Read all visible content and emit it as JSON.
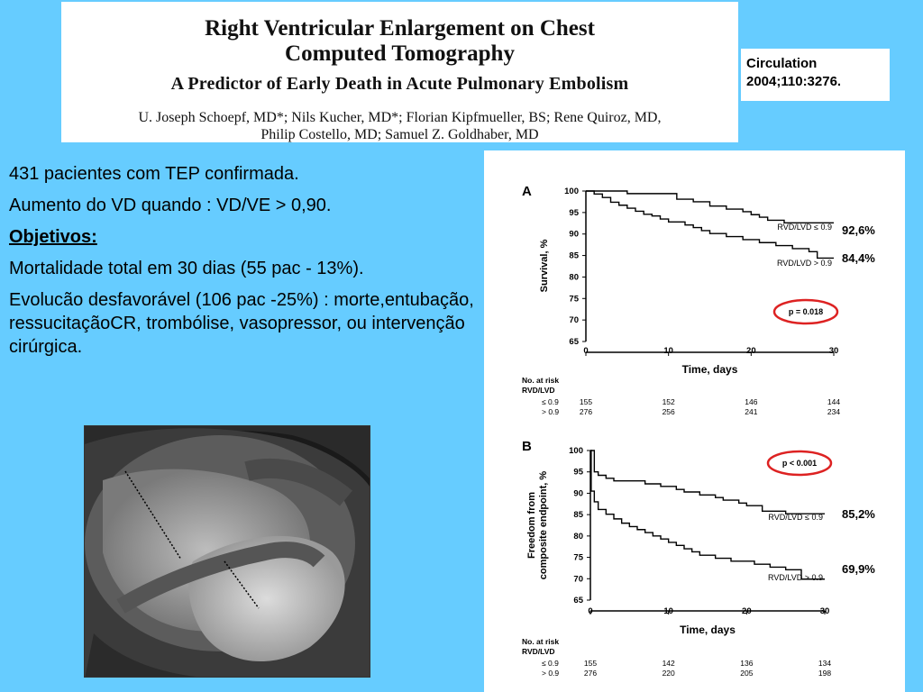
{
  "header": {
    "title_line1": "Right Ventricular Enlargement on Chest",
    "title_line2": "Computed Tomography",
    "subtitle": "A Predictor of Early Death in Acute Pulmonary Embolism",
    "authors_line1": "U. Joseph Schoepf, MD*; Nils Kucher, MD*; Florian Kipfmueller, BS; Rene Quiroz, MD,",
    "authors_line2": "Philip Costello, MD; Samuel Z. Goldhaber, MD"
  },
  "citation": {
    "line1": "Circulation",
    "line2": "2004;110:3276."
  },
  "body_text": {
    "p1": "431 pacientes com TEP confirmada.",
    "p2": "Aumento do VD quando : VD/VE > 0,90.",
    "p3": "Objetivos:",
    "p4": "Mortalidade total em 30 dias (55 pac - 13%).",
    "p5": "Evolucão desfavorável (106 pac -25%) : morte,entubação, ressucitaçãoCR, trombólise, vasopressor, ou intervenção cirúrgica."
  },
  "annotations": {
    "a_upper": "92,6%",
    "a_lower": "84,4%",
    "b_upper": "85,2%",
    "b_lower": "69,9%"
  },
  "chart_data": [
    {
      "type": "line",
      "panel_label": "A",
      "xlabel": "Time, days",
      "ylabel": "Survival, %",
      "xlim": [
        0,
        30
      ],
      "ylim": [
        65,
        100
      ],
      "x_ticks": [
        "0",
        "10",
        "20",
        "30"
      ],
      "y_ticks": [
        "65",
        "70",
        "75",
        "80",
        "85",
        "90",
        "95",
        "100"
      ],
      "series": [
        {
          "name": "RVD/LVD ≤ 0.9",
          "x": [
            0,
            3,
            5,
            8,
            11,
            13,
            15,
            17,
            19,
            20,
            21,
            22,
            24,
            30
          ],
          "y": [
            100,
            100,
            99.4,
            99.4,
            98.1,
            97.5,
            96.5,
            95.8,
            95.2,
            94.5,
            93.9,
            93.2,
            92.6,
            92.6
          ]
        },
        {
          "name": "RVD/LVD > 0.9",
          "x": [
            0,
            1,
            2,
            3,
            4,
            5,
            6,
            7,
            8,
            9,
            10,
            12,
            13,
            14,
            15,
            17,
            19,
            21,
            23,
            25,
            27,
            28,
            30
          ],
          "y": [
            100,
            99.3,
            98.5,
            97.4,
            96.7,
            96,
            95.3,
            94.6,
            94.2,
            93.5,
            92.8,
            92.1,
            91.5,
            90.8,
            90.1,
            89.4,
            88.7,
            88,
            87.3,
            86.6,
            85.9,
            84.4,
            84.4
          ]
        }
      ],
      "p_value": "p = 0.018",
      "risk_table": {
        "title": "No. at risk",
        "subtitle": "RVD/LVD",
        "rows": [
          {
            "label": "≤ 0.9",
            "values": [
              "155",
              "152",
              "146",
              "144"
            ]
          },
          {
            "label": "> 0.9",
            "values": [
              "276",
              "256",
              "241",
              "234"
            ]
          }
        ]
      }
    },
    {
      "type": "line",
      "panel_label": "B",
      "xlabel": "Time, days",
      "ylabel": "Freedom from composite endpoint, %",
      "xlim": [
        0,
        30
      ],
      "ylim": [
        65,
        100
      ],
      "x_ticks": [
        "0",
        "10",
        "20",
        "30"
      ],
      "y_ticks": [
        "65",
        "70",
        "75",
        "80",
        "85",
        "90",
        "95",
        "100"
      ],
      "series": [
        {
          "name": "RVD/LVD ≤ 0.9",
          "x": [
            0,
            0.5,
            1,
            2,
            3,
            5,
            7,
            9,
            11,
            12,
            14,
            16,
            17,
            19,
            20,
            22,
            25,
            30
          ],
          "y": [
            100,
            95,
            94.2,
            93.5,
            92.9,
            92.9,
            92.2,
            91.6,
            90.9,
            90.3,
            89.6,
            89,
            88.4,
            87.7,
            87.1,
            85.8,
            85.2,
            85.2
          ]
        },
        {
          "name": "RVD/LVD > 0.9",
          "x": [
            0,
            0.1,
            0.5,
            1,
            2,
            3,
            4,
            5,
            6,
            7,
            8,
            9,
            10,
            11,
            12,
            13,
            14,
            16,
            18,
            21,
            23,
            25,
            27,
            30
          ],
          "y": [
            100,
            90.5,
            88,
            86.2,
            85.1,
            84,
            83,
            82.2,
            81.5,
            80.8,
            80,
            79.3,
            78.5,
            77.8,
            77,
            76.3,
            75.5,
            74.8,
            74.1,
            73.4,
            72.7,
            72.1,
            69.9,
            69.9
          ]
        }
      ],
      "p_value": "p < 0.001",
      "risk_table": {
        "title": "No. at risk",
        "subtitle": "RVD/LVD",
        "rows": [
          {
            "label": "≤ 0.9",
            "values": [
              "155",
              "142",
              "136",
              "134"
            ]
          },
          {
            "label": "> 0.9",
            "values": [
              "276",
              "220",
              "205",
              "198"
            ]
          }
        ]
      }
    }
  ],
  "colors": {
    "background": "#66ccff",
    "highlight_circle": "#dd2222"
  }
}
